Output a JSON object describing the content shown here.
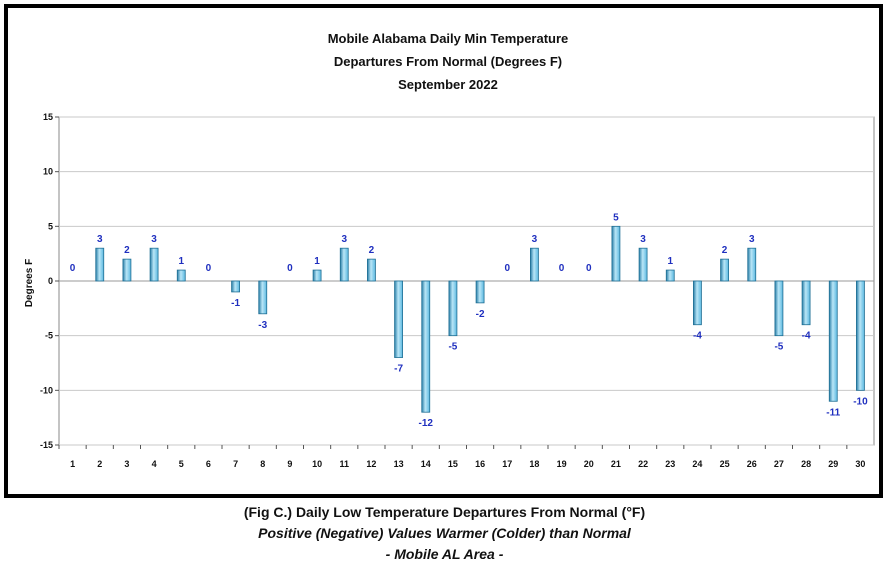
{
  "chart_data": {
    "type": "bar",
    "title": [
      "Mobile Alabama Daily Min Temperature",
      "Departures From Normal (Degrees F)",
      "September 2022"
    ],
    "xlabel": "",
    "ylabel": "Degrees F",
    "ylim": [
      -15,
      15
    ],
    "yticks": [
      15,
      10,
      5,
      0,
      -5,
      -10,
      -15
    ],
    "categories": [
      "1",
      "2",
      "3",
      "4",
      "5",
      "6",
      "7",
      "8",
      "9",
      "10",
      "11",
      "12",
      "13",
      "14",
      "15",
      "16",
      "17",
      "18",
      "19",
      "20",
      "21",
      "22",
      "23",
      "24",
      "25",
      "26",
      "27",
      "28",
      "29",
      "30"
    ],
    "values": [
      0,
      3,
      2,
      3,
      1,
      0,
      -1,
      -3,
      0,
      1,
      3,
      2,
      -7,
      -12,
      -5,
      -2,
      0,
      3,
      0,
      0,
      5,
      3,
      1,
      -4,
      2,
      3,
      -5,
      -4,
      -11,
      -10
    ],
    "data_labels": true,
    "grid": "horizontal",
    "legend": "none",
    "colors": {
      "bar": "#5bb8e0",
      "bar_dark": "#2a7fa8",
      "bar_light": "#b9e6f7",
      "data_label": "#1f2fbf",
      "grid": "#c9c9c9"
    }
  },
  "caption": {
    "line1": "(Fig C.) Daily Low Temperature Departures From Normal (°F)",
    "line2": "Positive (Negative) Values Warmer (Colder) than Normal",
    "line3": "- Mobile AL Area -"
  }
}
